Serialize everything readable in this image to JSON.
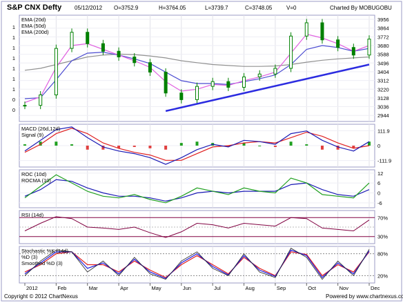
{
  "header": {
    "title": "S&P CNX Defty",
    "date": "05/12/2012",
    "open": "O=3752.9",
    "high": "H=3764.05",
    "low": "L=3739.7",
    "close": "C=3748.05",
    "volume": "V=0",
    "credit": "Charted By MOBUGOBU"
  },
  "footer": {
    "copyright": "Copyright © 2012 ChartNexus",
    "powered": "Powered by www.chartnexus.com"
  },
  "colors": {
    "frame": "#9b9bc4",
    "price_candle": "#008000",
    "ema20": "#e060e0",
    "ema50": "#4b4bd1",
    "ema200": "#909090",
    "trendline": "#2b2be0",
    "macd": "#1a1ab5",
    "signal": "#e02020",
    "hist_pos": "#20a020",
    "hist_neg": "#e04040",
    "roc": "#20a020",
    "rocma": "#1a1ab5",
    "rsi": "#800040",
    "rsi_band": "#800040",
    "stoch_k": "#202020",
    "stoch_d": "#2020e0",
    "stoch_sd": "#e02020"
  },
  "x_axis": {
    "labels": [
      "2012",
      "Feb",
      "Mar",
      "Apr",
      "May",
      "Jun",
      "Jul",
      "Aug",
      "Sep",
      "Oct",
      "Nov",
      "Dec"
    ]
  },
  "chart_data": [
    {
      "type": "candlestick",
      "title": "S&P CNX Defty",
      "legend": [
        "EMA (20d)",
        "EMA (50d)",
        "EMA (200d)"
      ],
      "yticks": [
        "3956",
        "3864",
        "3772",
        "3680",
        "3588",
        "3496",
        "3404",
        "3312",
        "3220",
        "3128",
        "3036",
        "2944"
      ],
      "ylim": [
        2880,
        4000
      ],
      "left_tick_labels": [
        "1",
        "1",
        "1",
        "1",
        "1",
        "1",
        "1",
        "0",
        "0"
      ],
      "dates": [
        "Jan 2",
        "Jan 16",
        "Feb 1",
        "Feb 15",
        "Mar 1",
        "Mar 15",
        "Apr 2",
        "Apr 16",
        "May 2",
        "May 16",
        "Jun 1",
        "Jun 15",
        "Jul 2",
        "Jul 16",
        "Aug 1",
        "Aug 15",
        "Sep 3",
        "Sep 17",
        "Oct 1",
        "Oct 15",
        "Nov 1",
        "Nov 15",
        "Dec 3"
      ],
      "close": [
        3050,
        3160,
        3650,
        3820,
        3700,
        3620,
        3560,
        3500,
        3400,
        3180,
        3110,
        3250,
        3300,
        3240,
        3350,
        3380,
        3440,
        3780,
        3920,
        3740,
        3660,
        3580,
        3748
      ],
      "ema20": [
        3080,
        3140,
        3450,
        3680,
        3700,
        3640,
        3580,
        3520,
        3450,
        3300,
        3200,
        3220,
        3270,
        3260,
        3310,
        3350,
        3400,
        3600,
        3800,
        3760,
        3700,
        3620,
        3680
      ],
      "ema50": [
        3120,
        3130,
        3320,
        3520,
        3600,
        3610,
        3580,
        3540,
        3490,
        3400,
        3310,
        3280,
        3280,
        3270,
        3300,
        3330,
        3370,
        3480,
        3640,
        3680,
        3660,
        3620,
        3650
      ],
      "ema200": [
        3420,
        3440,
        3480,
        3520,
        3560,
        3580,
        3590,
        3585,
        3570,
        3550,
        3520,
        3500,
        3480,
        3470,
        3460,
        3460,
        3465,
        3480,
        3505,
        3525,
        3540,
        3550,
        3560
      ],
      "trendline": {
        "from": [
          "May 16",
          2990
        ],
        "to": [
          "Dec 3",
          3480
        ]
      }
    },
    {
      "type": "line",
      "title": "MACD (26d,12d)",
      "legend": [
        "MACD (26d,12d)",
        "Signal (9)"
      ],
      "yticks": [
        "111.9",
        "0",
        "-111.9"
      ],
      "ylim": [
        -160,
        160
      ],
      "macd": [
        -40,
        40,
        120,
        140,
        60,
        -10,
        -40,
        -60,
        -90,
        -140,
        -90,
        -30,
        10,
        -10,
        40,
        30,
        10,
        90,
        110,
        40,
        -10,
        -40,
        30
      ],
      "signal": [
        -50,
        10,
        90,
        130,
        90,
        20,
        -20,
        -50,
        -70,
        -110,
        -110,
        -60,
        -10,
        0,
        20,
        30,
        20,
        60,
        100,
        70,
        20,
        -20,
        0
      ]
    },
    {
      "type": "line",
      "title": "ROC (10d)",
      "legend": [
        "ROC (10d)",
        "ROCMA (10)"
      ],
      "yticks": [
        "12",
        "6",
        "0",
        "-6"
      ],
      "ylim": [
        -9,
        14
      ],
      "roc": [
        -3,
        4,
        11,
        6,
        1,
        -2,
        -3,
        -1,
        -4,
        -6,
        -2,
        3,
        1,
        -1,
        3,
        1,
        0,
        9,
        6,
        -1,
        -2,
        -3,
        6
      ],
      "rocma": [
        -2,
        2,
        8,
        7,
        3,
        0,
        -2,
        -2,
        -3,
        -5,
        -3,
        0,
        1,
        0,
        1,
        1,
        1,
        5,
        6,
        2,
        -1,
        -2,
        2
      ]
    },
    {
      "type": "line",
      "title": "RSI (14d)",
      "legend": [
        "RSI (14d)"
      ],
      "yticks": [
        "70%",
        "30%"
      ],
      "ylim": [
        15,
        85
      ],
      "rsi": [
        42,
        58,
        72,
        68,
        50,
        48,
        45,
        50,
        38,
        28,
        40,
        58,
        55,
        48,
        58,
        55,
        52,
        70,
        68,
        48,
        45,
        42,
        65
      ],
      "bands": [
        70,
        30
      ]
    },
    {
      "type": "line",
      "title": "Stochastic %K (14d)",
      "legend": [
        "Stochastic %K (14d)",
        "%D (3)",
        "Smoothed %D (3)"
      ],
      "yticks": [
        "80%",
        "20%"
      ],
      "ylim": [
        0,
        100
      ],
      "k": [
        20,
        60,
        90,
        85,
        30,
        60,
        20,
        70,
        25,
        10,
        60,
        85,
        40,
        20,
        80,
        30,
        15,
        95,
        70,
        10,
        60,
        20,
        92
      ],
      "d": [
        25,
        55,
        85,
        85,
        40,
        55,
        25,
        65,
        30,
        12,
        55,
        80,
        45,
        22,
        75,
        35,
        18,
        90,
        75,
        15,
        55,
        25,
        88
      ],
      "smoothed_d": [
        30,
        50,
        80,
        85,
        50,
        50,
        30,
        60,
        35,
        15,
        50,
        75,
        50,
        25,
        70,
        40,
        20,
        85,
        78,
        20,
        50,
        30,
        85
      ],
      "bands": [
        80,
        20
      ]
    }
  ]
}
